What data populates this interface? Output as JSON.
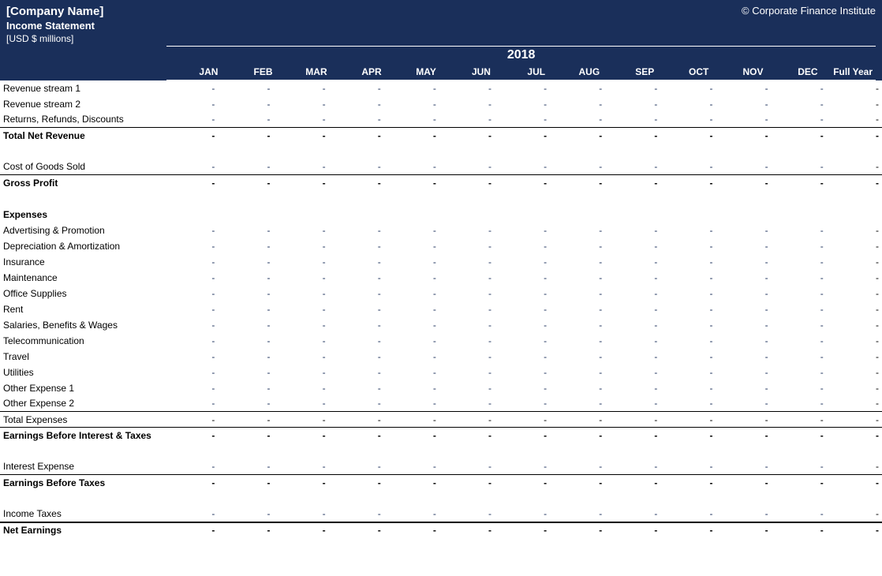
{
  "colors": {
    "header_bg": "#1a2f5a",
    "header_text": "#ffffff",
    "body_text": "#000000",
    "input_value": "#1a2f5a",
    "border": "#000000"
  },
  "header": {
    "company_name": "[Company Name]",
    "copyright": "© Corporate Finance Institute",
    "statement_title": "Income Statement",
    "units": "[USD $ millions]",
    "year": "2018",
    "months": [
      "JAN",
      "FEB",
      "MAR",
      "APR",
      "MAY",
      "JUN",
      "JUL",
      "AUG",
      "SEP",
      "OCT",
      "NOV",
      "DEC"
    ],
    "full_year_label": "Full Year"
  },
  "rows": [
    {
      "type": "data",
      "style": "blue",
      "label": "Revenue stream 1",
      "border": "none"
    },
    {
      "type": "data",
      "style": "blue",
      "label": "Revenue stream 2",
      "border": "none"
    },
    {
      "type": "data",
      "style": "blue",
      "label": "Returns, Refunds, Discounts",
      "border": "thin"
    },
    {
      "type": "total",
      "style": "black",
      "label": "Total Net Revenue",
      "border": "none",
      "bold": true
    },
    {
      "type": "spacer"
    },
    {
      "type": "data",
      "style": "blue",
      "label": "Cost of Goods Sold",
      "border": "thin"
    },
    {
      "type": "total",
      "style": "black",
      "label": "Gross Profit",
      "border": "none",
      "bold": true
    },
    {
      "type": "spacer"
    },
    {
      "type": "section",
      "label": "Expenses"
    },
    {
      "type": "data",
      "style": "blue",
      "label": "Advertising & Promotion",
      "border": "none"
    },
    {
      "type": "data",
      "style": "blue",
      "label": "Depreciation & Amortization",
      "border": "none"
    },
    {
      "type": "data",
      "style": "blue",
      "label": "Insurance",
      "border": "none"
    },
    {
      "type": "data",
      "style": "blue",
      "label": "Maintenance",
      "border": "none"
    },
    {
      "type": "data",
      "style": "blue",
      "label": "Office Supplies",
      "border": "none"
    },
    {
      "type": "data",
      "style": "blue",
      "label": "Rent",
      "border": "none"
    },
    {
      "type": "data",
      "style": "blue",
      "label": "Salaries, Benefits & Wages",
      "border": "none"
    },
    {
      "type": "data",
      "style": "blue",
      "label": "Telecommunication",
      "border": "none"
    },
    {
      "type": "data",
      "style": "blue",
      "label": "Travel",
      "border": "none"
    },
    {
      "type": "data",
      "style": "blue",
      "label": "Utilities",
      "border": "none"
    },
    {
      "type": "data",
      "style": "blue",
      "label": "Other Expense 1",
      "border": "none"
    },
    {
      "type": "data",
      "style": "blue",
      "label": "Other Expense 2",
      "border": "thin"
    },
    {
      "type": "total",
      "style": "black",
      "label": "Total Expenses",
      "border": "thin"
    },
    {
      "type": "total",
      "style": "black",
      "label": "Earnings Before Interest & Taxes",
      "border": "none",
      "bold": true
    },
    {
      "type": "spacer"
    },
    {
      "type": "data",
      "style": "blue",
      "label": "Interest Expense",
      "border": "thin"
    },
    {
      "type": "total",
      "style": "black",
      "label": "Earnings Before Taxes",
      "border": "none",
      "bold": true
    },
    {
      "type": "spacer"
    },
    {
      "type": "data",
      "style": "blue",
      "label": "Income Taxes",
      "border": "thick"
    },
    {
      "type": "total",
      "style": "black",
      "label": "Net Earnings",
      "border": "none",
      "bold": true
    }
  ],
  "dash": "-"
}
